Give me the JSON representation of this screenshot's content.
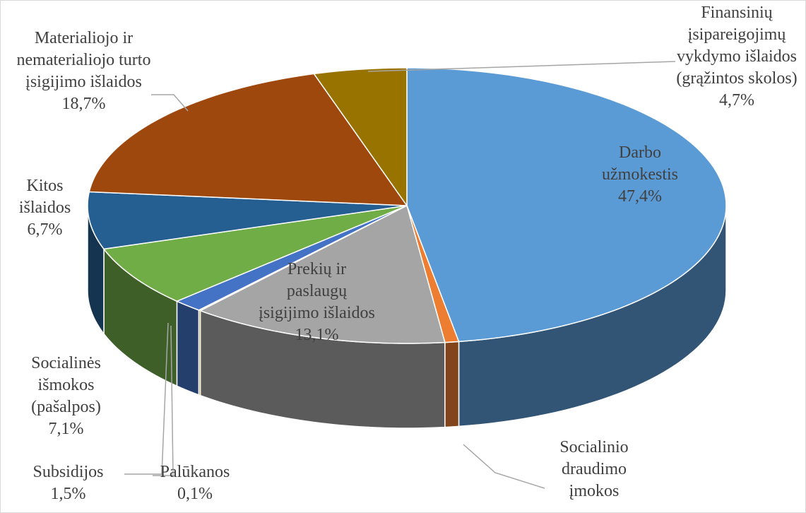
{
  "chart_data": {
    "type": "pie3d",
    "categories": [
      "Darbo užmokestis",
      "Socialinio draudimo įmokos",
      "Prekių ir paslaugų įsigijimo išlaidos",
      "Palūkanos",
      "Subsidijos",
      "Socialinės išmokos (pašalpos)",
      "Kitos išlaidos",
      "Materialiojo ir nematerialiojo turto įsigijimo išlaidos",
      "Finansinių įsipareigojimų vykdymo išlaidos (grąžintos skolos)"
    ],
    "values": [
      47.4,
      0.7,
      13.1,
      0.1,
      1.5,
      7.1,
      6.7,
      18.7,
      4.7
    ],
    "value_labels": [
      "47,4%",
      null,
      "13,1%",
      "0,1%",
      "1,5%",
      "7,1%",
      "6,7%",
      "18,7%",
      "4,7%"
    ],
    "colors": [
      "#5b9bd5",
      "#ed7d31",
      "#a5a5a5",
      "#ffc000",
      "#4472c4",
      "#70ad47",
      "#255e91",
      "#9e480e",
      "#997300"
    ]
  }
}
